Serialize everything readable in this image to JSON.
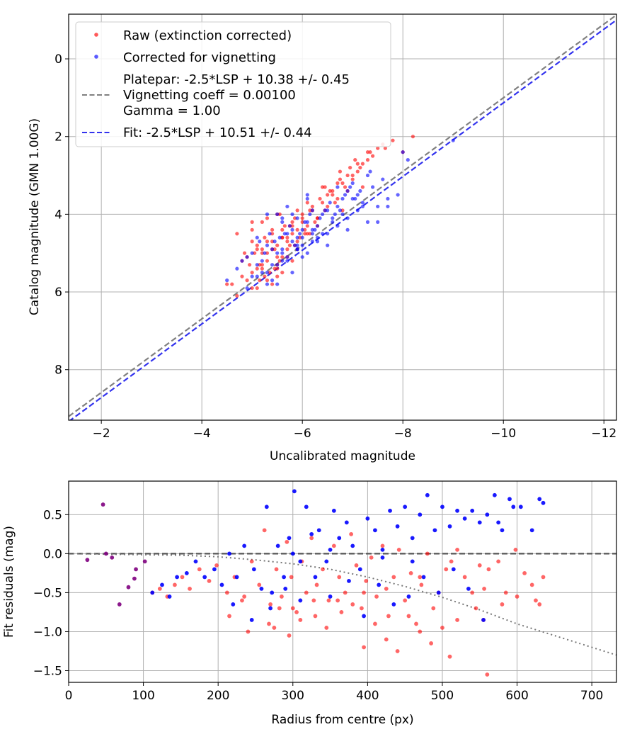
{
  "figure": {
    "background": "#ffffff",
    "grid_color": "#b0b0b0"
  },
  "chart_data": [
    {
      "type": "scatter",
      "id": "top",
      "title": "",
      "xlabel": "Uncalibrated magnitude",
      "ylabel": "Catalog magnitude (GMN 1.00G)",
      "xlim": [
        -1.35,
        -12.25
      ],
      "ylim": [
        9.3,
        -1.15
      ],
      "xticks": [
        -2,
        -4,
        -6,
        -8,
        -10,
        -12
      ],
      "xtick_labels": [
        "−2",
        "−4",
        "−6",
        "−8",
        "−10",
        "−12"
      ],
      "yticks": [
        0,
        2,
        4,
        6,
        8
      ],
      "ytick_labels": [
        "0",
        "2",
        "4",
        "6",
        "8"
      ],
      "grid": true,
      "legend_position": "upper-left",
      "legend": [
        {
          "kind": "marker",
          "color": "#ff0000",
          "label": "Raw (extinction corrected)"
        },
        {
          "kind": "marker",
          "color": "#0000ff",
          "label": "Corrected for vignetting"
        },
        {
          "kind": "line",
          "color": "#808080",
          "dash": "dashed",
          "lines": [
            "Platepar: -2.5*LSP + 10.38 +/- 0.45",
            "Vignetting coeff = 0.00100",
            "Gamma = 1.00"
          ]
        },
        {
          "kind": "line",
          "color": "#3333ee",
          "dash": "dashed",
          "lines": [
            "Fit: -2.5*LSP + 10.51 +/- 0.44"
          ]
        }
      ],
      "lines": [
        {
          "name": "platepar-line",
          "color": "#808080",
          "x": [
            -1.35,
            -12.25
          ],
          "y": [
            9.204,
            -1.13
          ]
        },
        {
          "name": "fit-line",
          "color": "#3333ee",
          "x": [
            -1.35,
            -12.25
          ],
          "y": [
            9.334,
            -1.0
          ]
        }
      ],
      "series": [
        {
          "name": "Raw (extinction corrected)",
          "color": "#ff0000",
          "x": [
            -4.8,
            -5.0,
            -5.1,
            -5.2,
            -5.3,
            -5.4,
            -5.5,
            -5.6,
            -4.9,
            -5.0,
            -5.1,
            -5.2,
            -5.3,
            -5.4,
            -5.5,
            -5.6,
            -5.7,
            -5.8,
            -5.9,
            -6.0,
            -6.1,
            -6.2,
            -6.3,
            -6.4,
            -6.5,
            -6.6,
            -6.7,
            -6.8,
            -6.9,
            -7.0,
            -7.1,
            -7.2,
            -7.3,
            -7.4,
            -7.6,
            -7.8,
            -5.05,
            -5.15,
            -5.25,
            -5.35,
            -5.45,
            -5.55,
            -5.65,
            -5.75,
            -5.85,
            -5.95,
            -6.05,
            -6.15,
            -6.25,
            -6.35,
            -6.45,
            -6.55,
            -6.65,
            -6.75,
            -6.85,
            -6.95,
            -4.6,
            -4.7,
            -4.8,
            -4.9,
            -5.0,
            -5.1,
            -5.2,
            -5.3,
            -5.4,
            -5.5,
            -5.6,
            -5.7,
            -5.8,
            -5.9,
            -6.0,
            -6.1,
            -6.2,
            -6.3,
            -6.5,
            -6.7,
            -6.9,
            -7.1,
            -7.3,
            -7.5,
            -5.2,
            -5.4,
            -5.6,
            -5.8,
            -6.0,
            -5.3,
            -5.5,
            -5.7,
            -5.9,
            -6.1,
            -5.0,
            -5.2,
            -5.4,
            -5.6,
            -5.8,
            -5.1,
            -5.3,
            -5.5,
            -5.7,
            -5.9,
            -4.95,
            -5.25,
            -5.55,
            -5.85,
            -6.15,
            -6.45,
            -6.75,
            -7.05,
            -7.35,
            -7.65,
            -8.0,
            -8.2,
            -4.5,
            -4.7,
            -5.0,
            -5.5,
            -6.3,
            -6.8,
            -7.2,
            -4.85,
            -5.45,
            -6.05,
            -6.6,
            -7.15,
            -5.15,
            -5.75,
            -6.4,
            -7.0
          ],
          "y": [
            5.2,
            5.5,
            4.8,
            5.3,
            5.0,
            4.7,
            5.6,
            5.1,
            5.7,
            5.9,
            5.4,
            4.9,
            5.2,
            4.5,
            4.8,
            4.4,
            4.6,
            4.3,
            4.7,
            4.2,
            4.5,
            3.9,
            4.1,
            3.7,
            3.8,
            3.5,
            3.6,
            3.2,
            3.4,
            3.0,
            2.9,
            2.7,
            2.6,
            2.5,
            2.2,
            2.1,
            5.0,
            5.3,
            4.6,
            5.5,
            4.9,
            5.2,
            4.3,
            4.8,
            4.1,
            4.6,
            4.4,
            3.9,
            4.2,
            3.6,
            3.9,
            3.4,
            3.7,
            3.1,
            3.3,
            2.8,
            5.8,
            6.1,
            5.6,
            5.1,
            4.7,
            5.9,
            5.0,
            5.7,
            4.4,
            5.4,
            4.6,
            5.1,
            4.2,
            4.9,
            4.0,
            4.3,
            3.8,
            4.1,
            3.5,
            3.2,
            3.0,
            2.7,
            2.4,
            2.3,
            5.4,
            4.9,
            4.6,
            4.5,
            4.1,
            4.7,
            5.3,
            4.9,
            4.4,
            3.7,
            4.4,
            4.2,
            5.8,
            5.5,
            5.2,
            4.9,
            4.1,
            5.1,
            4.7,
            3.9,
            5.3,
            5.6,
            4.0,
            4.8,
            4.5,
            3.3,
            2.9,
            2.6,
            2.4,
            2.3,
            2.4,
            2.0,
            5.8,
            4.5,
            4.2,
            4.0,
            4.3,
            3.9,
            3.3,
            5.0,
            5.4,
            4.5,
            3.4,
            2.8,
            5.7,
            4.3,
            3.3,
            3.1
          ]
        },
        {
          "name": "Corrected for vignetting",
          "color": "#0000ff",
          "x": [
            -4.5,
            -4.7,
            -4.9,
            -5.1,
            -5.3,
            -5.5,
            -5.7,
            -5.9,
            -6.1,
            -6.3,
            -6.5,
            -6.7,
            -6.9,
            -7.1,
            -7.3,
            -7.5,
            -7.7,
            -7.9,
            -8.1,
            -9.0,
            -4.8,
            -5.0,
            -5.2,
            -5.4,
            -5.6,
            -5.8,
            -6.0,
            -6.2,
            -6.4,
            -6.6,
            -6.8,
            -7.0,
            -7.2,
            -7.4,
            -7.6,
            -4.9,
            -5.1,
            -5.3,
            -5.5,
            -5.7,
            -5.9,
            -6.1,
            -6.3,
            -6.5,
            -6.7,
            -6.9,
            -7.1,
            -7.3,
            -5.0,
            -5.2,
            -5.4,
            -5.6,
            -5.8,
            -6.0,
            -6.2,
            -6.4,
            -6.6,
            -6.8,
            -7.0,
            -5.15,
            -5.35,
            -5.55,
            -5.75,
            -5.95,
            -6.15,
            -6.35,
            -6.55,
            -6.75,
            -6.95,
            -7.15,
            -7.35,
            -5.25,
            -5.45,
            -5.65,
            -5.85,
            -6.05,
            -6.25,
            -6.45,
            -6.65,
            -6.85,
            -7.05,
            -5.6,
            -5.8,
            -6.0,
            -6.2,
            -5.5,
            -5.7,
            -5.9,
            -6.1,
            -5.3,
            -5.4,
            -5.5,
            -5.6,
            -5.7,
            -5.8,
            -5.9,
            -6.0,
            -6.1,
            -6.3,
            -6.5,
            -6.7,
            -6.9,
            -7.2,
            -7.5,
            -7.7,
            -8.0,
            -5.1,
            -5.3,
            -5.6,
            -5.9,
            -6.2
          ],
          "y": [
            5.7,
            5.4,
            5.9,
            5.6,
            5.8,
            5.3,
            5.1,
            4.9,
            5.0,
            4.6,
            4.8,
            4.3,
            4.1,
            3.9,
            4.2,
            3.8,
            3.6,
            3.5,
            2.6,
            2.1,
            5.2,
            5.0,
            5.5,
            4.9,
            5.2,
            4.7,
            4.8,
            4.4,
            4.5,
            4.1,
            4.0,
            3.6,
            3.7,
            3.3,
            3.1,
            5.1,
            5.3,
            4.8,
            5.0,
            4.5,
            4.6,
            4.2,
            4.3,
            3.9,
            3.8,
            3.4,
            3.5,
            3.0,
            5.6,
            5.2,
            5.3,
            4.9,
            4.4,
            4.6,
            4.7,
            4.0,
            4.2,
            3.6,
            3.2,
            4.7,
            4.5,
            4.6,
            4.3,
            4.5,
            4.0,
            4.1,
            3.7,
            3.9,
            3.3,
            3.4,
            2.9,
            5.0,
            4.7,
            4.5,
            4.8,
            4.2,
            4.4,
            3.9,
            4.0,
            3.5,
            3.6,
            4.2,
            4.0,
            4.4,
            3.9,
            4.0,
            3.8,
            4.1,
            3.6,
            5.5,
            5.7,
            5.8,
            4.1,
            5.2,
            5.5,
            4.9,
            5.1,
            3.5,
            4.7,
            4.5,
            3.3,
            4.4,
            3.8,
            4.2,
            3.8,
            2.4,
            4.6,
            4.0,
            5.0,
            4.8,
            4.5
          ]
        }
      ]
    },
    {
      "type": "scatter",
      "id": "bottom",
      "title": "",
      "xlabel": "Radius from centre (px)",
      "ylabel": "Fit residuals (mag)",
      "xlim": [
        0,
        733
      ],
      "ylim": [
        -1.65,
        0.93
      ],
      "xticks": [
        0,
        100,
        200,
        300,
        400,
        500,
        600,
        700
      ],
      "xtick_labels": [
        "0",
        "100",
        "200",
        "300",
        "400",
        "500",
        "600",
        "700"
      ],
      "yticks": [
        -1.5,
        -1.0,
        -0.5,
        0.0,
        0.5
      ],
      "ytick_labels": [
        "−1.5",
        "−1.0",
        "−0.5",
        "0.0",
        "0.5"
      ],
      "grid": true,
      "reference_lines": [
        {
          "name": "zero-residual-line",
          "color": "#555555",
          "dash": "dashed",
          "x": [
            0,
            733
          ],
          "y": [
            0,
            0
          ]
        },
        {
          "name": "vignetting-curve",
          "color": "#777777",
          "dash": "dotted",
          "x": [
            0,
            150,
            200,
            250,
            300,
            350,
            400,
            450,
            500,
            550,
            600,
            650,
            733
          ],
          "y": [
            0,
            -0.02,
            -0.04,
            -0.08,
            -0.13,
            -0.2,
            -0.3,
            -0.42,
            -0.56,
            -0.72,
            -0.9,
            -1.05,
            -1.3
          ]
        }
      ],
      "series": [
        {
          "name": "Raw residuals",
          "color": "#ff0000",
          "x": [
            112,
            122,
            132,
            142,
            152,
            162,
            175,
            188,
            198,
            212,
            222,
            232,
            245,
            255,
            262,
            270,
            278,
            285,
            292,
            298,
            305,
            312,
            318,
            325,
            332,
            340,
            348,
            355,
            362,
            370,
            378,
            385,
            392,
            398,
            405,
            412,
            420,
            428,
            435,
            442,
            450,
            458,
            465,
            472,
            480,
            488,
            495,
            505,
            512,
            520,
            530,
            540,
            550,
            556,
            562,
            575,
            585,
            598,
            610,
            625,
            635,
            215,
            235,
            268,
            282,
            295,
            310,
            328,
            345,
            365,
            380,
            395,
            410,
            425,
            440,
            455,
            470,
            485,
            500,
            520,
            545,
            560,
            580,
            600,
            620,
            630,
            240,
            275,
            300,
            330,
            360,
            395,
            425,
            470,
            510,
            555
          ],
          "y": [
            -0.5,
            -0.45,
            -0.55,
            -0.4,
            -0.3,
            -0.45,
            -0.2,
            -0.35,
            -0.15,
            -0.5,
            -0.3,
            -0.6,
            -0.1,
            -0.4,
            0.3,
            -0.65,
            -0.2,
            -0.55,
            0.15,
            -0.3,
            -0.75,
            -0.1,
            -0.5,
            0.2,
            -0.4,
            -0.2,
            -0.6,
            0.1,
            -0.3,
            -0.5,
            0.25,
            -0.15,
            -0.7,
            -0.35,
            -0.05,
            -0.55,
            0.1,
            -0.8,
            -0.3,
            0.05,
            -0.6,
            -0.25,
            -0.9,
            -0.4,
            0.0,
            -0.7,
            -0.5,
            -0.2,
            -0.1,
            0.05,
            -0.3,
            -0.5,
            -0.15,
            -0.45,
            -0.2,
            -0.1,
            -0.5,
            0.05,
            -0.25,
            -0.6,
            -0.3,
            -0.8,
            -0.55,
            -0.9,
            -0.7,
            -1.05,
            -0.85,
            -0.6,
            -0.95,
            -0.75,
            -0.65,
            -1.2,
            -0.9,
            -1.1,
            -1.25,
            -0.8,
            -1.0,
            -1.15,
            -0.95,
            -0.85,
            -0.7,
            -1.55,
            -0.65,
            -0.55,
            -0.4,
            -0.65,
            -1.0,
            -0.95,
            -0.7,
            -0.8,
            -0.6,
            -0.5,
            -0.45,
            -0.3,
            -1.32,
            -0.85
          ]
        },
        {
          "name": "Corrected residuals",
          "color": "#0000ff",
          "x": [
            112,
            125,
            135,
            145,
            158,
            170,
            182,
            195,
            205,
            215,
            225,
            235,
            248,
            258,
            265,
            272,
            280,
            288,
            295,
            302,
            310,
            318,
            325,
            335,
            345,
            355,
            362,
            372,
            380,
            390,
            400,
            410,
            420,
            430,
            440,
            450,
            460,
            470,
            480,
            490,
            500,
            510,
            520,
            530,
            540,
            550,
            560,
            570,
            580,
            590,
            605,
            620,
            630,
            635,
            220,
            245,
            270,
            290,
            310,
            330,
            350,
            375,
            395,
            415,
            435,
            455,
            475,
            495,
            515,
            535,
            555,
            575,
            595,
            300,
            350,
            420,
            460
          ],
          "y": [
            -0.5,
            -0.4,
            -0.55,
            -0.3,
            -0.25,
            -0.1,
            -0.3,
            -0.2,
            -0.4,
            0.0,
            -0.3,
            0.1,
            -0.2,
            -0.45,
            0.6,
            -0.5,
            0.1,
            -0.3,
            0.2,
            0.8,
            -0.1,
            0.6,
            0.25,
            0.3,
            -0.1,
            0.55,
            0.2,
            0.4,
            0.1,
            -0.2,
            0.45,
            0.3,
            0.05,
            0.55,
            0.35,
            0.6,
            0.2,
            0.5,
            0.75,
            0.3,
            0.6,
            0.35,
            0.55,
            0.45,
            0.55,
            0.4,
            0.5,
            0.75,
            0.3,
            0.7,
            0.6,
            0.3,
            0.7,
            0.65,
            -0.65,
            -0.85,
            -0.7,
            -0.45,
            -0.6,
            -0.3,
            -0.55,
            -0.35,
            -0.8,
            -0.4,
            -0.65,
            -0.55,
            -0.3,
            -0.5,
            -0.2,
            -0.45,
            -0.85,
            0.4,
            0.6,
            0.0,
            0.05,
            -0.05,
            -0.1
          ]
        },
        {
          "name": "Overlapping residuals",
          "color": "#800080",
          "x": [
            25,
            46,
            50,
            58,
            68,
            80,
            88,
            90,
            102
          ],
          "y": [
            -0.08,
            0.63,
            0.0,
            -0.05,
            -0.65,
            -0.43,
            -0.32,
            -0.2,
            -0.1
          ]
        }
      ]
    }
  ]
}
